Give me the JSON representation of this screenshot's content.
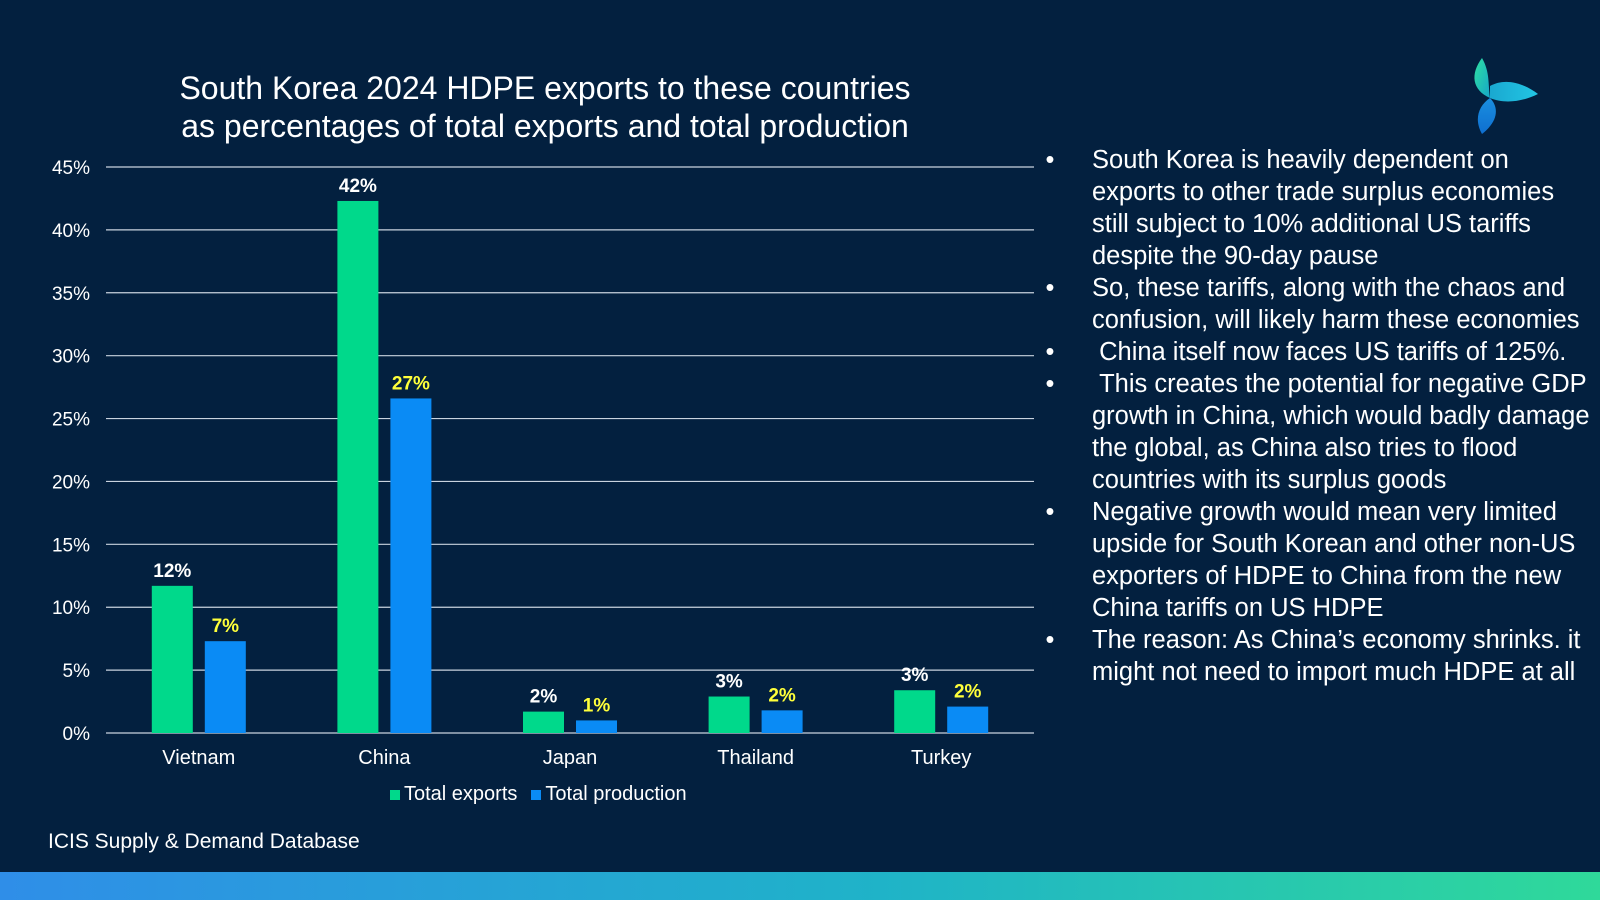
{
  "chart_data": {
    "type": "bar",
    "title_lines": [
      "South Korea 2024 HDPE exports to these countries",
      "as percentages of total exports and total production"
    ],
    "categories": [
      "Vietnam",
      "China",
      "Japan",
      "Thailand",
      "Turkey"
    ],
    "series": [
      {
        "name": "Total exports",
        "values": [
          11.7,
          42.3,
          1.7,
          2.9,
          3.4
        ],
        "labels": [
          "12%",
          "42%",
          "2%",
          "3%",
          "3%"
        ],
        "color": "#00d98b",
        "label_color": "#ffffff"
      },
      {
        "name": "Total production",
        "values": [
          7.3,
          26.6,
          1.0,
          1.8,
          2.1
        ],
        "labels": [
          "7%",
          "27%",
          "1%",
          "2%",
          "2%"
        ],
        "color": "#0a8bf5",
        "label_color": "#ffff3a"
      }
    ],
    "ylim": [
      0,
      45
    ],
    "yticks": [
      0,
      5,
      10,
      15,
      20,
      25,
      30,
      35,
      40,
      45
    ],
    "ytick_labels": [
      "0%",
      "5%",
      "10%",
      "15%",
      "20%",
      "25%",
      "30%",
      "35%",
      "40%",
      "45%"
    ],
    "grid": true,
    "legend_position": "bottom"
  },
  "bullets": [
    "South Korea is heavily dependent on exports to other trade surplus economies still subject to 10% additional US tariffs despite the 90-day pause",
    "So, these tariffs, along with the chaos and confusion, will likely harm these economies",
    " China itself now faces US tariffs of 125%.",
    " This creates the potential for negative GDP growth in China, which would badly damage the global, as China also tries to flood countries with its surplus goods",
    "Negative growth would mean very limited upside for South Korean and other non-US exporters of HDPE to China from the new China tariffs on US HDPE",
    "The reason: As China’s economy shrinks. it might not need to import much HDPE at all"
  ],
  "bullet_symbol": "•",
  "source": "ICIS Supply & Demand Database",
  "logo_icon": "icis-tri-leaf-logo-icon",
  "colors": {
    "background": "#03203f",
    "gridline": "#c9d3df",
    "exports": "#00d98b",
    "production": "#0a8bf5"
  }
}
